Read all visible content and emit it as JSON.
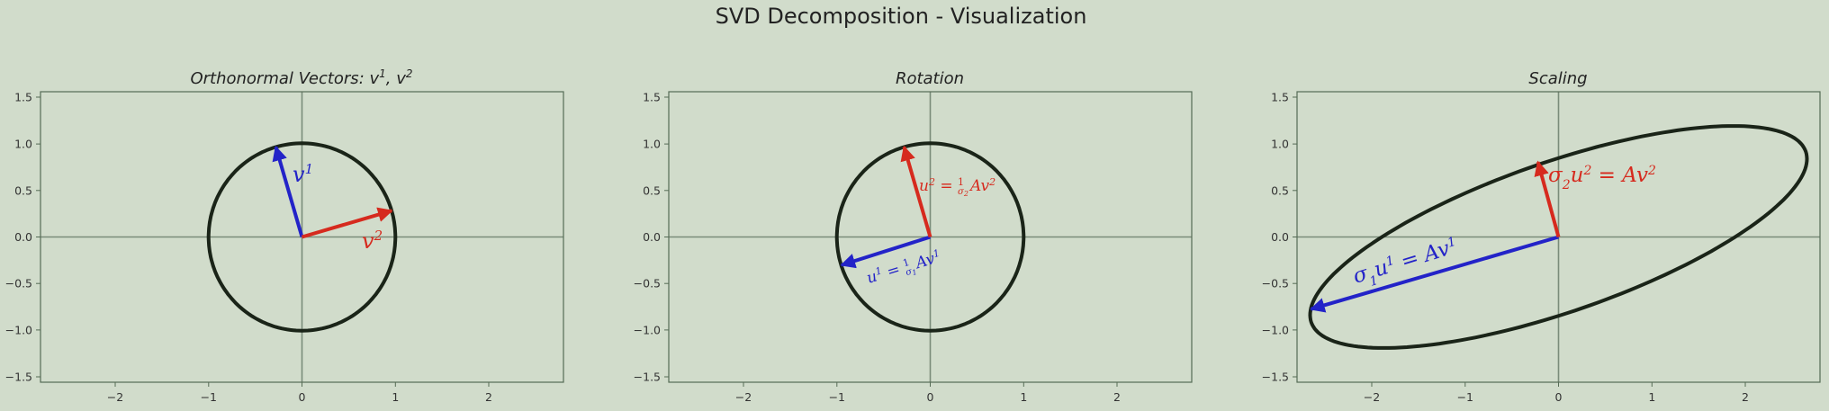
{
  "figure": {
    "suptitle": "SVD Decomposition - Visualization"
  },
  "colors": {
    "background": "#d1dccb",
    "red": "#d62a1e",
    "blue": "#2323c8",
    "curve": "#1a2418"
  },
  "chart_data": [
    {
      "type": "line",
      "title": "Orthonormal Vectors: v¹, v²",
      "xlim": [
        -2.8,
        2.8
      ],
      "ylim": [
        -1.55,
        1.55
      ],
      "xticks": [
        -2,
        -1,
        0,
        1,
        2
      ],
      "yticks": [
        -1.5,
        -1.0,
        -0.5,
        0.0,
        0.5,
        1.0,
        1.5
      ],
      "grid": false,
      "curve": {
        "kind": "ellipse",
        "semi_axis_1": 1.0,
        "semi_axis_2": 1.0,
        "angle_deg": 0
      },
      "vectors": [
        {
          "name": "v1",
          "label": "v¹",
          "color": "blue",
          "x": -0.28,
          "y": 0.96
        },
        {
          "name": "v2",
          "label": "v²",
          "color": "red",
          "x": 0.96,
          "y": 0.28
        }
      ]
    },
    {
      "type": "line",
      "title": "Rotation",
      "xlim": [
        -2.8,
        2.8
      ],
      "ylim": [
        -1.55,
        1.55
      ],
      "xticks": [
        -2,
        -1,
        0,
        1,
        2
      ],
      "yticks": [
        -1.5,
        -1.0,
        -0.5,
        0.0,
        0.5,
        1.0,
        1.5
      ],
      "grid": false,
      "curve": {
        "kind": "ellipse",
        "semi_axis_1": 1.0,
        "semi_axis_2": 1.0,
        "angle_deg": 0
      },
      "vectors": [
        {
          "name": "u1",
          "label": "u¹ = (1/σ₁)Av¹",
          "color": "blue",
          "x": -0.95,
          "y": -0.3
        },
        {
          "name": "u2",
          "label": "u² = (1/σ₂)Av²",
          "color": "red",
          "x": -0.28,
          "y": 0.96
        }
      ]
    },
    {
      "type": "line",
      "title": "Scaling",
      "xlim": [
        -2.8,
        2.8
      ],
      "ylim": [
        -1.55,
        1.55
      ],
      "xticks": [
        -2,
        -1,
        0,
        1,
        2
      ],
      "yticks": [
        -1.5,
        -1.0,
        -0.5,
        0.0,
        0.5,
        1.0,
        1.5
      ],
      "grid": false,
      "curve": {
        "kind": "ellipse",
        "semi_axis_1": 2.8,
        "semi_axis_2": 0.8,
        "angle_deg": 19
      },
      "vectors": [
        {
          "name": "sigma1_u1",
          "label": "σ₁u¹ = Av¹",
          "color": "blue",
          "x": -2.65,
          "y": -0.77
        },
        {
          "name": "sigma2_u2",
          "label": "σ₂u² = Av²",
          "color": "red",
          "x": -0.22,
          "y": 0.8
        }
      ]
    }
  ]
}
